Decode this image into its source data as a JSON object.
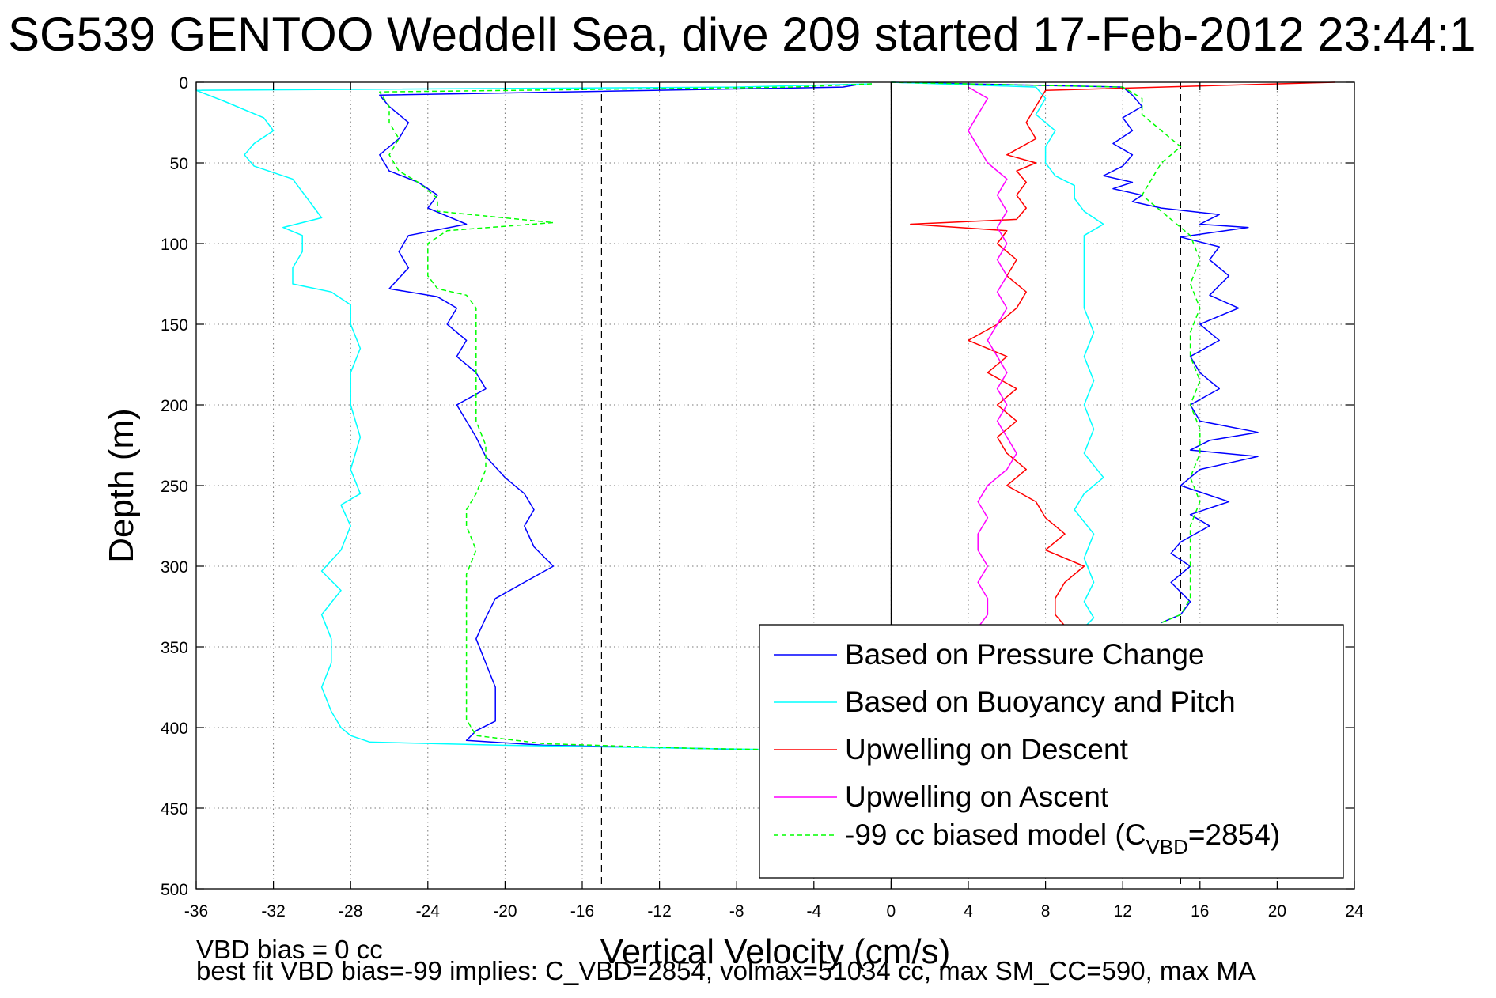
{
  "chart_data": {
    "type": "line",
    "title": "SG539 GENTOO Weddell Sea, dive 209 started 17-Feb-2012 23:44:1",
    "xlabel": "Vertical Velocity (cm/s)",
    "ylabel": "Depth (m)",
    "xlim": [
      -36,
      24
    ],
    "ylim": [
      0,
      500
    ],
    "y_reversed": true,
    "grid": true,
    "legend_position": "bottom-right",
    "xticks": [
      -36,
      -32,
      -28,
      -24,
      -20,
      -16,
      -12,
      -8,
      -4,
      0,
      4,
      8,
      12,
      16,
      20,
      24
    ],
    "yticks": [
      0,
      50,
      100,
      150,
      200,
      250,
      300,
      350,
      400,
      450,
      500
    ],
    "reference_lines": {
      "solid_x": 0,
      "dashed_x": [
        -15,
        15
      ]
    },
    "series": [
      {
        "name": "Based on Pressure Change",
        "color": "#0000ff",
        "style": "solid",
        "points": [
          [
            -1.5,
            1
          ],
          [
            -2.5,
            3
          ],
          [
            -26.5,
            8
          ],
          [
            -26,
            15
          ],
          [
            -25,
            25
          ],
          [
            -25.5,
            35
          ],
          [
            -26.5,
            45
          ],
          [
            -26,
            55
          ],
          [
            -24.5,
            62
          ],
          [
            -23.5,
            70
          ],
          [
            -24,
            78
          ],
          [
            -22,
            88
          ],
          [
            -25,
            95
          ],
          [
            -25.5,
            105
          ],
          [
            -25,
            115
          ],
          [
            -26,
            128
          ],
          [
            -23.5,
            133
          ],
          [
            -22.5,
            140
          ],
          [
            -23,
            150
          ],
          [
            -22,
            160
          ],
          [
            -22.5,
            170
          ],
          [
            -21.5,
            180
          ],
          [
            -21,
            190
          ],
          [
            -22.5,
            200
          ],
          [
            -22,
            210
          ],
          [
            -21.5,
            220
          ],
          [
            -21,
            232
          ],
          [
            -20,
            245
          ],
          [
            -19,
            255
          ],
          [
            -18.5,
            265
          ],
          [
            -19,
            275
          ],
          [
            -18.5,
            288
          ],
          [
            -17.5,
            300
          ],
          [
            -19,
            310
          ],
          [
            -20.5,
            320
          ],
          [
            -21,
            332
          ],
          [
            -21.5,
            345
          ],
          [
            -21,
            360
          ],
          [
            -20.5,
            375
          ],
          [
            -20.5,
            388
          ],
          [
            -20.5,
            396
          ],
          [
            -21.5,
            402
          ],
          [
            -22,
            408
          ],
          [
            -18,
            411
          ],
          [
            -10,
            413
          ],
          [
            -6,
            414
          ],
          [
            -3,
            415
          ]
        ],
        "ascent_points": [
          [
            0,
            0
          ],
          [
            12,
            3
          ],
          [
            12.5,
            8
          ],
          [
            13,
            15
          ],
          [
            12,
            22
          ],
          [
            12.5,
            30
          ],
          [
            11.5,
            38
          ],
          [
            12.5,
            45
          ],
          [
            12,
            52
          ],
          [
            11,
            58
          ],
          [
            12.5,
            62
          ],
          [
            11.5,
            66
          ],
          [
            13,
            70
          ],
          [
            12.5,
            74
          ],
          [
            14,
            78
          ],
          [
            17,
            82
          ],
          [
            16,
            88
          ],
          [
            18.5,
            90
          ],
          [
            15,
            96
          ],
          [
            17,
            102
          ],
          [
            16.5,
            110
          ],
          [
            17.5,
            120
          ],
          [
            16.5,
            132
          ],
          [
            18,
            140
          ],
          [
            16,
            150
          ],
          [
            17,
            160
          ],
          [
            15.5,
            170
          ],
          [
            16,
            180
          ],
          [
            17,
            190
          ],
          [
            15.5,
            200
          ],
          [
            16,
            210
          ],
          [
            19,
            217
          ],
          [
            16.5,
            222
          ],
          [
            15.5,
            228
          ],
          [
            19,
            232
          ],
          [
            16,
            240
          ],
          [
            15,
            250
          ],
          [
            17.5,
            260
          ],
          [
            15.5,
            268
          ],
          [
            16.5,
            275
          ],
          [
            15,
            285
          ],
          [
            14.5,
            292
          ],
          [
            15.5,
            300
          ],
          [
            14.5,
            310
          ],
          [
            15.5,
            322
          ],
          [
            15,
            330
          ],
          [
            14,
            335
          ]
        ]
      },
      {
        "name": "Based on Buoyancy and Pitch",
        "color": "#00ffff",
        "style": "solid",
        "points": [
          [
            -1,
            1
          ],
          [
            -8,
            3
          ],
          [
            -36,
            5
          ],
          [
            -34.5,
            12
          ],
          [
            -32.5,
            22
          ],
          [
            -32,
            30
          ],
          [
            -33,
            38
          ],
          [
            -33.5,
            45
          ],
          [
            -33,
            52
          ],
          [
            -31,
            60
          ],
          [
            -30.5,
            68
          ],
          [
            -30,
            76
          ],
          [
            -29.5,
            84
          ],
          [
            -31.5,
            90
          ],
          [
            -30.5,
            95
          ],
          [
            -30.5,
            105
          ],
          [
            -31,
            115
          ],
          [
            -31,
            125
          ],
          [
            -29,
            130
          ],
          [
            -28,
            138
          ],
          [
            -28,
            150
          ],
          [
            -27.5,
            165
          ],
          [
            -28,
            180
          ],
          [
            -28,
            200
          ],
          [
            -27.5,
            220
          ],
          [
            -28,
            240
          ],
          [
            -27.5,
            255
          ],
          [
            -28.5,
            262
          ],
          [
            -28,
            275
          ],
          [
            -28.5,
            290
          ],
          [
            -29.5,
            303
          ],
          [
            -28.5,
            315
          ],
          [
            -29.5,
            330
          ],
          [
            -29,
            345
          ],
          [
            -29,
            360
          ],
          [
            -29.5,
            375
          ],
          [
            -29,
            390
          ],
          [
            -28.5,
            400
          ],
          [
            -28,
            405
          ],
          [
            -27,
            409
          ],
          [
            -20,
            411
          ],
          [
            -10,
            413
          ],
          [
            -4,
            414
          ]
        ],
        "ascent_points": [
          [
            0,
            0
          ],
          [
            7.5,
            3
          ],
          [
            8,
            10
          ],
          [
            7.5,
            20
          ],
          [
            8.5,
            30
          ],
          [
            8,
            40
          ],
          [
            8,
            50
          ],
          [
            8.5,
            58
          ],
          [
            9.5,
            64
          ],
          [
            9.5,
            72
          ],
          [
            10,
            80
          ],
          [
            11,
            88
          ],
          [
            10,
            95
          ],
          [
            10,
            110
          ],
          [
            10,
            125
          ],
          [
            10,
            140
          ],
          [
            10.5,
            155
          ],
          [
            10,
            170
          ],
          [
            10.5,
            185
          ],
          [
            10,
            200
          ],
          [
            10.5,
            215
          ],
          [
            10,
            230
          ],
          [
            11,
            245
          ],
          [
            10,
            255
          ],
          [
            9.5,
            265
          ],
          [
            10.5,
            280
          ],
          [
            10,
            295
          ],
          [
            10.5,
            310
          ],
          [
            10,
            322
          ],
          [
            10.5,
            332
          ],
          [
            10,
            338
          ]
        ]
      },
      {
        "name": "Upwelling on Descent",
        "color": "#ff0000",
        "style": "solid",
        "points": [
          [
            23,
            0
          ],
          [
            8,
            5
          ],
          [
            7.5,
            15
          ],
          [
            7,
            25
          ],
          [
            7.5,
            35
          ],
          [
            6,
            45
          ],
          [
            7.5,
            50
          ],
          [
            6.5,
            55
          ],
          [
            7,
            62
          ],
          [
            6.5,
            70
          ],
          [
            7,
            78
          ],
          [
            6.5,
            85
          ],
          [
            1,
            88
          ],
          [
            6,
            92
          ],
          [
            5.5,
            100
          ],
          [
            6.5,
            110
          ],
          [
            6,
            120
          ],
          [
            7,
            130
          ],
          [
            6.5,
            140
          ],
          [
            5.5,
            150
          ],
          [
            4,
            160
          ],
          [
            6,
            170
          ],
          [
            5,
            180
          ],
          [
            6.5,
            190
          ],
          [
            5.5,
            200
          ],
          [
            6.5,
            210
          ],
          [
            5.5,
            220
          ],
          [
            6,
            230
          ],
          [
            7,
            240
          ],
          [
            6,
            250
          ],
          [
            7.5,
            260
          ],
          [
            8,
            270
          ],
          [
            9,
            280
          ],
          [
            8,
            290
          ],
          [
            10,
            300
          ],
          [
            9,
            310
          ],
          [
            8.5,
            320
          ],
          [
            8.5,
            330
          ],
          [
            9,
            337
          ]
        ]
      },
      {
        "name": "Upwelling on Ascent",
        "color": "#ff00ff",
        "style": "solid",
        "points": [
          [
            4,
            3
          ],
          [
            5,
            10
          ],
          [
            4.5,
            20
          ],
          [
            4,
            30
          ],
          [
            4.5,
            40
          ],
          [
            5,
            50
          ],
          [
            6,
            60
          ],
          [
            5.5,
            70
          ],
          [
            6,
            80
          ],
          [
            5.5,
            90
          ],
          [
            6,
            100
          ],
          [
            5.5,
            110
          ],
          [
            6,
            120
          ],
          [
            5.5,
            130
          ],
          [
            6,
            140
          ],
          [
            5.5,
            150
          ],
          [
            5,
            160
          ],
          [
            5.5,
            170
          ],
          [
            6,
            180
          ],
          [
            5.5,
            190
          ],
          [
            6,
            200
          ],
          [
            5.5,
            210
          ],
          [
            6,
            220
          ],
          [
            6.5,
            230
          ],
          [
            6,
            240
          ],
          [
            5,
            250
          ],
          [
            4.5,
            260
          ],
          [
            5,
            270
          ],
          [
            4.5,
            280
          ],
          [
            4.5,
            290
          ],
          [
            5,
            300
          ],
          [
            4.5,
            310
          ],
          [
            5,
            320
          ],
          [
            5,
            330
          ],
          [
            4.5,
            338
          ]
        ]
      },
      {
        "name": "-99 cc biased model (CVBD=2854)",
        "legend_main": "-99 cc biased model (C",
        "legend_sub": "VBD",
        "legend_tail": "=2854)",
        "color": "#00ff00",
        "style": "dashed",
        "points": [
          [
            -1,
            1
          ],
          [
            -5,
            3
          ],
          [
            -26.5,
            6
          ],
          [
            -26,
            15
          ],
          [
            -26,
            25
          ],
          [
            -25.5,
            35
          ],
          [
            -26,
            45
          ],
          [
            -25.5,
            55
          ],
          [
            -24.5,
            62
          ],
          [
            -23.5,
            72
          ],
          [
            -23.5,
            80
          ],
          [
            -17.5,
            87
          ],
          [
            -23,
            92
          ],
          [
            -24,
            100
          ],
          [
            -24,
            110
          ],
          [
            -24,
            120
          ],
          [
            -23.5,
            128
          ],
          [
            -22,
            132
          ],
          [
            -21.5,
            140
          ],
          [
            -21.5,
            150
          ],
          [
            -21.5,
            165
          ],
          [
            -21.5,
            180
          ],
          [
            -21.5,
            195
          ],
          [
            -21.5,
            210
          ],
          [
            -21,
            225
          ],
          [
            -21,
            240
          ],
          [
            -21.5,
            255
          ],
          [
            -22,
            265
          ],
          [
            -22,
            275
          ],
          [
            -21.5,
            290
          ],
          [
            -22,
            305
          ],
          [
            -22,
            320
          ],
          [
            -22,
            335
          ],
          [
            -22,
            350
          ],
          [
            -22,
            365
          ],
          [
            -22,
            380
          ],
          [
            -22,
            395
          ],
          [
            -21.5,
            405
          ],
          [
            -18,
            410
          ],
          [
            -10,
            413
          ],
          [
            -4,
            414
          ]
        ],
        "ascent_points": [
          [
            0,
            0
          ],
          [
            12,
            3
          ],
          [
            13,
            10
          ],
          [
            13,
            20
          ],
          [
            14,
            30
          ],
          [
            15,
            40
          ],
          [
            14,
            50
          ],
          [
            13.5,
            60
          ],
          [
            13,
            70
          ],
          [
            14,
            80
          ],
          [
            15.5,
            95
          ],
          [
            16,
            110
          ],
          [
            15.5,
            125
          ],
          [
            16,
            140
          ],
          [
            15.5,
            155
          ],
          [
            15.5,
            170
          ],
          [
            16,
            185
          ],
          [
            15.5,
            200
          ],
          [
            16,
            215
          ],
          [
            16,
            230
          ],
          [
            15.5,
            245
          ],
          [
            16,
            260
          ],
          [
            15.5,
            275
          ],
          [
            15.5,
            290
          ],
          [
            15.5,
            305
          ],
          [
            15.5,
            320
          ],
          [
            15,
            330
          ],
          [
            14,
            335
          ]
        ]
      }
    ]
  },
  "footer": {
    "line1": "VBD bias = 0 cc",
    "line2": "best fit VBD bias=-99 implies: C_VBD=2854, volmax=51034 cc, max SM_CC=590, max MA"
  }
}
